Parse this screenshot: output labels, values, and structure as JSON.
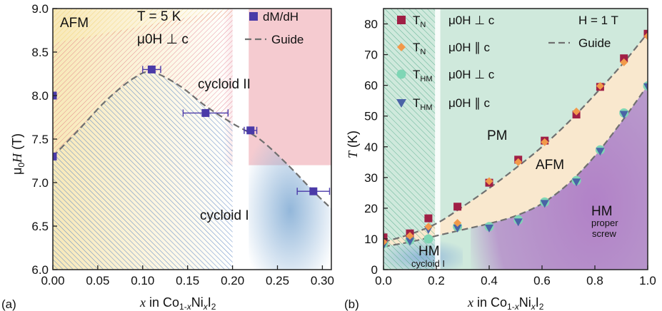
{
  "colors": {
    "primary_marker": "#4a3aa8",
    "tn_perp": "#a01f45",
    "tn_par": "#f2994a",
    "thm_perp": "#7fd6b5",
    "thm_par": "#4a63a6",
    "guide": "#707070",
    "afm_yellow": "#f5c542",
    "afm_fill": "#fbe6c8",
    "pm_green": "#cfe9dc",
    "cycloid_red": "#f0b8c0",
    "cycloid_blue": "#8db3d8",
    "hm_purple": "#b07cc6"
  },
  "chart_data": [
    {
      "panel_label": "(a)",
      "type": "scatter",
      "x_label": "x in Co1-xNixI2",
      "y_label": "μ0H (T)",
      "xlim": [
        0.0,
        0.31
      ],
      "ylim": [
        6.0,
        9.0
      ],
      "x_ticks": [
        "0.00",
        "0.05",
        "0.10",
        "0.15",
        "0.20",
        "0.25",
        "0.30"
      ],
      "y_ticks": [
        "6.0",
        "6.5",
        "7.0",
        "7.5",
        "8.0",
        "8.5",
        "9.0"
      ],
      "x_tick_values": [
        0.0,
        0.05,
        0.1,
        0.15,
        0.2,
        0.25,
        0.3
      ],
      "y_tick_values": [
        6.0,
        6.5,
        7.0,
        7.5,
        8.0,
        8.5,
        9.0
      ],
      "conditions": {
        "temperature": "T = 5 K",
        "field_direction": "μ0H ⊥ c"
      },
      "legend": {
        "marker": "dM/dH",
        "line": "Guide"
      },
      "series": [
        {
          "name": "dM/dH",
          "points": [
            {
              "x": 0.0,
              "y": 8.0,
              "xerr": 0.0
            },
            {
              "x": 0.0,
              "y": 7.3,
              "xerr": 0.0
            },
            {
              "x": 0.11,
              "y": 8.3,
              "xerr": 0.01
            },
            {
              "x": 0.17,
              "y": 7.8,
              "xerr": 0.025
            },
            {
              "x": 0.22,
              "y": 7.6,
              "xerr": 0.007
            },
            {
              "x": 0.29,
              "y": 6.9,
              "xerr": 0.018
            }
          ]
        },
        {
          "name": "Guide",
          "points": [
            {
              "x": 0.0,
              "y": 7.3
            },
            {
              "x": 0.03,
              "y": 7.62
            },
            {
              "x": 0.06,
              "y": 7.95
            },
            {
              "x": 0.09,
              "y": 8.2
            },
            {
              "x": 0.11,
              "y": 8.27
            },
            {
              "x": 0.14,
              "y": 8.12
            },
            {
              "x": 0.17,
              "y": 7.88
            },
            {
              "x": 0.2,
              "y": 7.68
            },
            {
              "x": 0.23,
              "y": 7.5
            },
            {
              "x": 0.26,
              "y": 7.22
            },
            {
              "x": 0.29,
              "y": 6.9
            },
            {
              "x": 0.31,
              "y": 6.7
            }
          ]
        }
      ],
      "regions": {
        "afm": "AFM",
        "cycloid_ii": "cycloid II",
        "cycloid_i": "cycloid I"
      }
    },
    {
      "panel_label": "(b)",
      "type": "scatter",
      "x_label": "x in Co1-xNixI2",
      "y_label": "T (K)",
      "xlim": [
        0.0,
        1.0
      ],
      "ylim": [
        0,
        85
      ],
      "x_ticks": [
        "0.0",
        "0.2",
        "0.4",
        "0.6",
        "0.8",
        "1.0"
      ],
      "y_ticks": [
        "0",
        "10",
        "20",
        "30",
        "40",
        "50",
        "60",
        "70",
        "80"
      ],
      "x_tick_values": [
        0.0,
        0.2,
        0.4,
        0.6,
        0.8,
        1.0
      ],
      "y_tick_values": [
        0,
        10,
        20,
        30,
        40,
        50,
        60,
        70,
        80
      ],
      "conditions": {
        "field": "H = 1 T"
      },
      "legend": [
        {
          "symbol": "square",
          "label": "TN",
          "condition": "μ0H ⊥ c"
        },
        {
          "symbol": "diamond",
          "label": "TN",
          "condition": "μ0H ∥ c"
        },
        {
          "symbol": "circle",
          "label": "THM",
          "condition": "μ0H ⊥ c"
        },
        {
          "symbol": "triangle-down",
          "label": "THM",
          "condition": "μ0H ∥ c"
        }
      ],
      "legend_guide": "Guide",
      "series": [
        {
          "name": "TN μ0H ⊥ c",
          "x": [
            0.0,
            0.1,
            0.17,
            0.28,
            0.4,
            0.51,
            0.61,
            0.73,
            0.82,
            0.91,
            1.0
          ],
          "y": [
            10.5,
            11.8,
            16.7,
            20.5,
            28.3,
            35.8,
            42.0,
            50.5,
            59.5,
            68.8,
            76.8
          ]
        },
        {
          "name": "TN μ0H ∥ c",
          "x": [
            0.0,
            0.1,
            0.17,
            0.28,
            0.4,
            0.51,
            0.61,
            0.73,
            0.82,
            0.91,
            1.0
          ],
          "y": [
            9.0,
            11.0,
            14.0,
            15.2,
            28.8,
            35.0,
            41.5,
            51.5,
            59.8,
            67.5,
            76.0
          ]
        },
        {
          "name": "THM μ0H ⊥ c",
          "x": [
            0.0,
            0.1,
            0.17,
            0.28,
            0.4,
            0.51,
            0.61,
            0.73,
            0.82,
            0.91,
            1.0
          ],
          "y": [
            8.5,
            9.6,
            10.0,
            14.0,
            14.0,
            16.2,
            22.0,
            29.0,
            39.0,
            51.0,
            59.8
          ]
        },
        {
          "name": "THM μ0H ∥ c",
          "x": [
            0.0,
            0.1,
            0.17,
            0.28,
            0.4,
            0.51,
            0.61,
            0.73,
            0.82,
            0.91,
            1.0
          ],
          "y": [
            8.0,
            9.2,
            13.0,
            13.5,
            13.5,
            15.5,
            21.5,
            28.5,
            38.5,
            50.5,
            59.5
          ]
        },
        {
          "name": "Guide TN",
          "x": [
            0.0,
            0.1,
            0.2,
            0.3,
            0.4,
            0.5,
            0.6,
            0.7,
            0.8,
            0.9,
            1.0
          ],
          "y": [
            9.0,
            11.5,
            15.0,
            20.5,
            26.5,
            33.0,
            40.0,
            48.0,
            57.0,
            66.5,
            77.0
          ]
        },
        {
          "name": "Guide THM",
          "x": [
            0.0,
            0.1,
            0.2,
            0.3,
            0.4,
            0.5,
            0.6,
            0.7,
            0.8,
            0.9,
            1.0
          ],
          "y": [
            7.5,
            9.0,
            11.0,
            13.0,
            15.0,
            17.5,
            21.5,
            28.0,
            37.0,
            48.0,
            60.0
          ]
        }
      ],
      "regions": {
        "pm": "PM",
        "afm": "AFM",
        "hm": "HM",
        "hm_sub": "proper screw",
        "hm_cycloid": "HM",
        "hm_cycloid_sub": "cycloid I"
      }
    }
  ]
}
